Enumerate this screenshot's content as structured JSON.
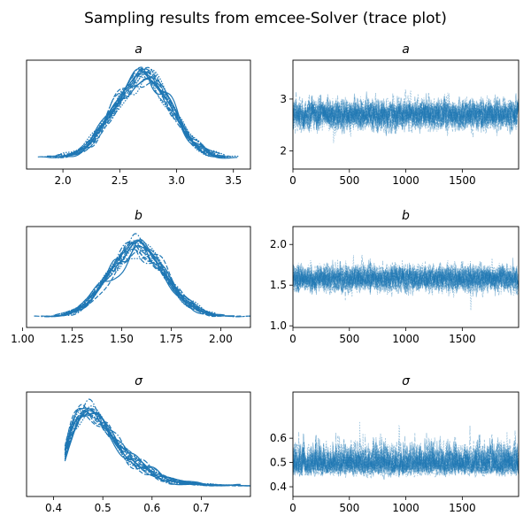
{
  "figure": {
    "title": "Sampling results from emcee-Solver (trace plot)",
    "line_color": "#1f77b4"
  },
  "chart_data": [
    {
      "type": "line",
      "panel": "density",
      "title": "a",
      "xlabel": "",
      "ylabel": "",
      "xlim": [
        1.68,
        3.65
      ],
      "xticks": [
        2.0,
        2.5,
        3.0,
        3.5
      ],
      "xtick_labels": [
        "2.0",
        "2.5",
        "3.0",
        "3.5"
      ],
      "y_ticks_visible": false,
      "n_chains": 16,
      "distribution": {
        "mean": 2.7,
        "sd": 0.25
      },
      "grid": false
    },
    {
      "type": "line",
      "panel": "trace",
      "title": "a",
      "xlim": [
        0,
        1999
      ],
      "ylim": [
        1.65,
        3.75
      ],
      "xticks": [
        0,
        500,
        1000,
        1500
      ],
      "xtick_labels": [
        "0",
        "500",
        "1000",
        "1500"
      ],
      "yticks": [
        2,
        3
      ],
      "ytick_labels": [
        "2",
        "3"
      ],
      "n_chains": 16,
      "n_draws": 2000,
      "distribution": {
        "mean": 2.7,
        "sd": 0.25
      },
      "grid": false
    },
    {
      "type": "line",
      "panel": "density",
      "title": "b",
      "xlim": [
        1.02,
        2.15
      ],
      "xticks": [
        1.0,
        1.25,
        1.5,
        1.75,
        2.0
      ],
      "xtick_labels": [
        "1.00",
        "1.25",
        "1.50",
        "1.75",
        "2.00"
      ],
      "y_ticks_visible": false,
      "n_chains": 16,
      "distribution": {
        "mean": 1.58,
        "sd": 0.14
      },
      "grid": false
    },
    {
      "type": "line",
      "panel": "trace",
      "title": "b",
      "xlim": [
        0,
        1999
      ],
      "ylim": [
        0.98,
        2.22
      ],
      "xticks": [
        0,
        500,
        1000,
        1500
      ],
      "xtick_labels": [
        "0",
        "500",
        "1000",
        "1500"
      ],
      "yticks": [
        1.0,
        1.5,
        2.0
      ],
      "ytick_labels": [
        "1.0",
        "1.5",
        "2.0"
      ],
      "n_chains": 16,
      "n_draws": 2000,
      "distribution": {
        "mean": 1.58,
        "sd": 0.14
      },
      "grid": false
    },
    {
      "type": "line",
      "panel": "density",
      "title": "σ",
      "xlim": [
        0.345,
        0.8
      ],
      "xticks": [
        0.4,
        0.5,
        0.6,
        0.7
      ],
      "xtick_labels": [
        "0.4",
        "0.5",
        "0.6",
        "0.7"
      ],
      "y_ticks_visible": false,
      "n_chains": 16,
      "distribution": {
        "mean": 0.5,
        "sd": 0.055,
        "skew": 0.6
      },
      "grid": false
    },
    {
      "type": "line",
      "panel": "trace",
      "title": "σ",
      "xlim": [
        0,
        1999
      ],
      "ylim": [
        0.36,
        0.79
      ],
      "xticks": [
        0,
        500,
        1000,
        1500
      ],
      "xtick_labels": [
        "0",
        "500",
        "1000",
        "1500"
      ],
      "yticks": [
        0.4,
        0.5,
        0.6
      ],
      "ytick_labels": [
        "0.4",
        "0.5",
        "0.6"
      ],
      "n_chains": 16,
      "n_draws": 2000,
      "distribution": {
        "mean": 0.5,
        "sd": 0.055,
        "skew": 0.6
      },
      "grid": false
    }
  ]
}
